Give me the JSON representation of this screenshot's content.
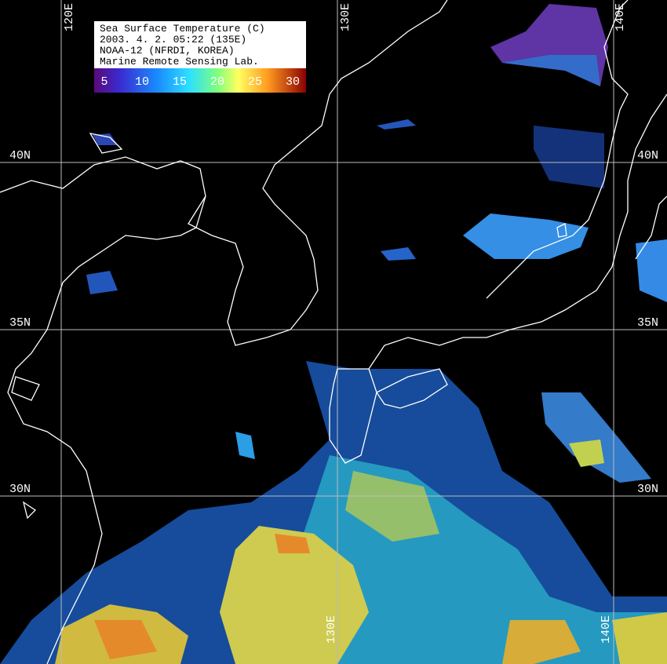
{
  "legend": {
    "lines": [
      "Sea Surface Temperature (C)",
      "2003. 4. 2. 05:22 (135E)",
      "NOAA-12 (NFRDI, KOREA)",
      "Marine Remote Sensing Lab."
    ],
    "scale_labels": [
      5,
      10,
      15,
      20,
      25,
      30
    ]
  },
  "grid": {
    "longitudes": [
      "120E",
      "130E",
      "140E"
    ],
    "latitudes": [
      "40N",
      "35N",
      "30N"
    ]
  }
}
